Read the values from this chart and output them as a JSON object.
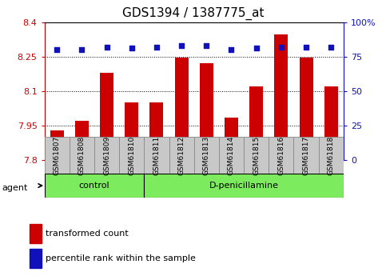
{
  "title": "GDS1394 / 1387775_at",
  "samples": [
    "GSM61807",
    "GSM61808",
    "GSM61809",
    "GSM61810",
    "GSM61811",
    "GSM61812",
    "GSM61813",
    "GSM61814",
    "GSM61815",
    "GSM61816",
    "GSM61817",
    "GSM61818"
  ],
  "transformed_count": [
    7.93,
    7.97,
    8.18,
    8.05,
    8.05,
    8.245,
    8.22,
    7.985,
    8.12,
    8.345,
    8.245,
    8.12
  ],
  "percentile_rank": [
    80,
    80,
    82,
    81,
    82,
    83,
    83,
    80,
    81,
    82,
    82,
    82
  ],
  "bar_color": "#cc0000",
  "dot_color": "#1111bb",
  "ylim_left": [
    7.8,
    8.4
  ],
  "ylim_right": [
    0,
    100
  ],
  "yticks_left": [
    7.8,
    7.95,
    8.1,
    8.25,
    8.4
  ],
  "yticks_right": [
    0,
    25,
    50,
    75,
    100
  ],
  "ytick_labels_right": [
    "0",
    "25",
    "50",
    "75",
    "100%"
  ],
  "groups": [
    {
      "label": "control",
      "indices": [
        0,
        1,
        2,
        3
      ]
    },
    {
      "label": "D-penicillamine",
      "indices": [
        4,
        5,
        6,
        7,
        8,
        9,
        10,
        11
      ]
    }
  ],
  "group_color": "#7cec5e",
  "sample_box_color": "#c8c8c8",
  "agent_label": "agent",
  "legend_bar_label": "transformed count",
  "legend_dot_label": "percentile rank within the sample",
  "title_fontsize": 11,
  "tick_fontsize": 8,
  "bar_width": 0.55,
  "grid_color": "#000000"
}
